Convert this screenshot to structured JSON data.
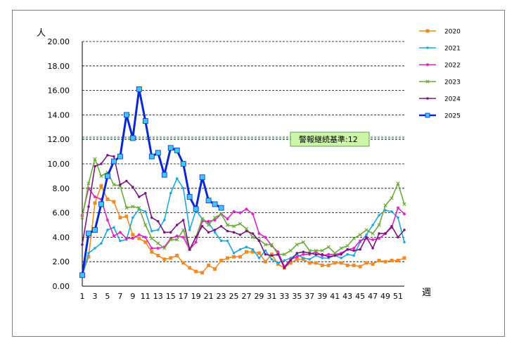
{
  "chart_data": {
    "type": "line",
    "ylabel": "人",
    "xlabel": "週",
    "ylim": [
      0,
      20
    ],
    "y_ticks": [
      "0.00",
      "2.00",
      "4.00",
      "6.00",
      "8.00",
      "10.00",
      "12.00",
      "14.00",
      "16.00",
      "18.00",
      "20.00"
    ],
    "x_ticks": [
      1,
      3,
      5,
      7,
      9,
      11,
      13,
      15,
      17,
      19,
      21,
      23,
      25,
      27,
      29,
      31,
      33,
      35,
      37,
      39,
      41,
      43,
      45,
      47,
      49,
      51
    ],
    "grid": "horizontal dashed",
    "legend_position": "right",
    "threshold": {
      "label": "警報継続基準:",
      "value_text": "12",
      "value": 12.1,
      "color": "#2e8b57"
    },
    "series": [
      {
        "name": "2020",
        "color": "#f08a24",
        "marker": "square",
        "values": [
          0.9,
          2.4,
          6.8,
          8.2,
          7.1,
          6.9,
          5.6,
          5.7,
          4.2,
          3.9,
          3.6,
          2.8,
          2.5,
          2.2,
          2.3,
          2.5,
          1.9,
          1.5,
          1.2,
          1.1,
          1.7,
          1.4,
          2.1,
          2.3,
          2.4,
          2.4,
          2.8,
          2.8,
          2.7,
          2.0,
          2.6,
          1.8,
          1.5,
          1.9,
          2.2,
          2.2,
          1.9,
          1.9,
          1.7,
          1.7,
          1.9,
          1.9,
          1.7,
          1.7,
          1.6,
          1.9,
          1.8,
          2.1,
          2.0,
          2.1,
          2.1,
          2.3
        ]
      },
      {
        "name": "2021",
        "color": "#1ca7e0",
        "marker": "dot",
        "values": [
          0.9,
          2.7,
          3.1,
          3.5,
          4.6,
          4.8,
          3.7,
          3.8,
          5.6,
          6.3,
          6.1,
          4.5,
          4.6,
          5.4,
          7.6,
          8.8,
          8.0,
          4.6,
          6.2,
          5.5,
          5.2,
          4.4,
          3.7,
          3.7,
          2.7,
          3.0,
          3.2,
          3.0,
          2.3,
          2.9,
          2.2,
          1.9,
          2.1,
          2.3,
          2.6,
          2.3,
          2.2,
          2.5,
          2.3,
          2.3,
          2.5,
          2.3,
          2.6,
          2.5,
          3.6,
          4.2,
          5.0,
          5.8,
          6.2,
          6.1,
          5.6,
          3.6
        ]
      },
      {
        "name": "2022",
        "color": "#e020c8",
        "marker": "star",
        "values": [
          5.8,
          8.0,
          7.3,
          7.1,
          5.4,
          4.1,
          4.4,
          3.9,
          3.9,
          4.2,
          4.0,
          3.1,
          3.1,
          3.2,
          3.9,
          4.1,
          4.0,
          3.0,
          3.6,
          5.3,
          5.3,
          5.4,
          5.9,
          5.5,
          6.1,
          6.0,
          6.3,
          5.9,
          4.3,
          4.0,
          3.3,
          2.8,
          1.6,
          2.2,
          2.4,
          2.6,
          2.6,
          2.8,
          2.5,
          2.6,
          2.6,
          2.7,
          3.0,
          3.1,
          3.7,
          3.9,
          3.8,
          3.9,
          4.3,
          4.8,
          6.4,
          5.9
        ]
      },
      {
        "name": "2023",
        "color": "#6da83a",
        "marker": "x",
        "values": [
          5.6,
          8.4,
          10.4,
          9.0,
          9.3,
          8.3,
          8.2,
          6.4,
          6.5,
          6.4,
          5.0,
          3.9,
          3.5,
          3.1,
          3.8,
          3.8,
          4.6,
          3.0,
          4.0,
          5.5,
          5.0,
          5.6,
          5.9,
          5.0,
          4.9,
          5.1,
          4.7,
          4.0,
          3.8,
          3.4,
          3.4,
          2.6,
          2.6,
          2.9,
          3.4,
          3.6,
          2.9,
          2.9,
          2.9,
          3.2,
          2.7,
          3.1,
          3.3,
          3.9,
          4.2,
          4.6,
          4.3,
          5.0,
          6.6,
          7.2,
          8.4,
          6.7
        ]
      },
      {
        "name": "2024",
        "color": "#7a1580",
        "marker": "dot",
        "values": [
          3.4,
          6.5,
          9.8,
          10.0,
          10.7,
          10.6,
          8.3,
          8.6,
          8.1,
          7.3,
          7.6,
          5.6,
          5.3,
          4.4,
          4.4,
          5.0,
          5.4,
          3.0,
          4.0,
          4.9,
          4.4,
          4.6,
          4.9,
          4.5,
          4.4,
          4.2,
          4.5,
          4.3,
          3.7,
          2.6,
          2.5,
          2.6,
          1.5,
          2.1,
          2.7,
          2.8,
          2.7,
          2.6,
          2.6,
          2.4,
          2.5,
          2.6,
          3.0,
          2.9,
          3.0,
          4.0,
          3.1,
          4.3,
          4.3,
          4.9,
          4.0,
          4.6
        ]
      },
      {
        "name": "2025",
        "color": "#0a28d2",
        "marker": "square",
        "values": [
          0.9,
          4.3,
          4.6,
          6.7,
          9.0,
          10.2,
          10.6,
          14.0,
          12.1,
          16.1,
          13.5,
          10.6,
          10.9,
          9.1,
          11.3,
          11.1,
          10.0,
          7.3,
          6.3,
          8.9,
          7.0,
          6.7,
          6.4
        ]
      }
    ]
  }
}
